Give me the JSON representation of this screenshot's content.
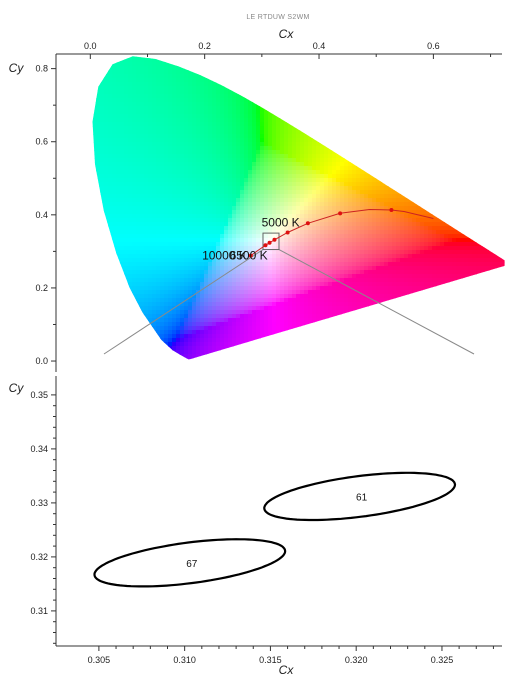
{
  "chart_data": [
    {
      "type": "scatter",
      "title": "LE RTDUW S2WM",
      "xlabel": "Cx",
      "ylabel": "Cy",
      "xlim": [
        -0.06,
        0.72
      ],
      "ylim": [
        -0.03,
        0.84
      ],
      "x_ticks": [
        "0.0",
        "0.2",
        "0.4",
        "0.6"
      ],
      "y_ticks": [
        "0.0",
        "0.2",
        "0.4",
        "0.6",
        "0.8"
      ],
      "grid": false,
      "spectral_locus": [
        [
          0.1741,
          0.005
        ],
        [
          0.1733,
          0.0048
        ],
        [
          0.1726,
          0.0048
        ],
        [
          0.1714,
          0.0051
        ],
        [
          0.1689,
          0.0069
        ],
        [
          0.1644,
          0.0109
        ],
        [
          0.1566,
          0.0177
        ],
        [
          0.144,
          0.0297
        ],
        [
          0.1241,
          0.0578
        ],
        [
          0.0913,
          0.1327
        ],
        [
          0.0687,
          0.2007
        ],
        [
          0.0454,
          0.295
        ],
        [
          0.0235,
          0.4127
        ],
        [
          0.0082,
          0.5384
        ],
        [
          0.0039,
          0.6548
        ],
        [
          0.0139,
          0.7502
        ],
        [
          0.0389,
          0.812
        ],
        [
          0.0743,
          0.8338
        ],
        [
          0.1142,
          0.8262
        ],
        [
          0.1547,
          0.8059
        ],
        [
          0.1929,
          0.7816
        ],
        [
          0.2296,
          0.7543
        ],
        [
          0.2658,
          0.7243
        ],
        [
          0.3016,
          0.6923
        ],
        [
          0.3373,
          0.6589
        ],
        [
          0.3731,
          0.6245
        ],
        [
          0.4087,
          0.5896
        ],
        [
          0.4441,
          0.5547
        ],
        [
          0.4788,
          0.5202
        ],
        [
          0.5125,
          0.4866
        ],
        [
          0.5448,
          0.4544
        ],
        [
          0.5752,
          0.4242
        ],
        [
          0.6029,
          0.3965
        ],
        [
          0.627,
          0.3725
        ],
        [
          0.6482,
          0.3514
        ],
        [
          0.6658,
          0.334
        ],
        [
          0.6801,
          0.3197
        ],
        [
          0.6915,
          0.3083
        ],
        [
          0.7006,
          0.2993
        ],
        [
          0.7079,
          0.292
        ],
        [
          0.7347,
          0.2653
        ]
      ],
      "planckian_locus": [
        [
          0.6,
          0.39
        ],
        [
          0.5486,
          0.4092
        ],
        [
          0.5266,
          0.4133
        ],
        [
          0.4882,
          0.4147
        ],
        [
          0.4369,
          0.4041
        ],
        [
          0.3805,
          0.3768
        ],
        [
          0.3451,
          0.3516
        ],
        [
          0.3221,
          0.3318
        ],
        [
          0.3135,
          0.3237
        ],
        [
          0.3064,
          0.3166
        ],
        [
          0.2952,
          0.3048
        ],
        [
          0.2807,
          0.2884
        ]
      ],
      "cct_markers": [
        {
          "x": 0.5266,
          "y": 0.4133
        },
        {
          "x": 0.4369,
          "y": 0.4041
        },
        {
          "x": 0.3805,
          "y": 0.3768
        },
        {
          "x": 0.3451,
          "y": 0.3516
        },
        {
          "x": 0.3221,
          "y": 0.3318
        },
        {
          "x": 0.3135,
          "y": 0.3237
        },
        {
          "x": 0.3064,
          "y": 0.3166
        },
        {
          "x": 0.2807,
          "y": 0.2884
        }
      ],
      "cct_labels": [
        {
          "text": "5000 K",
          "x": 0.3451,
          "y": 0.3516
        },
        {
          "text": "6500 K",
          "x": 0.3135,
          "y": 0.3237
        },
        {
          "text": "10000 K",
          "x": 0.2807,
          "y": 0.2884
        }
      ],
      "zoom_box": {
        "x": [
          0.302,
          0.33
        ],
        "y": [
          0.305,
          0.35
        ]
      },
      "marker_color": "#e01010",
      "locus_line_color": "#cc2222",
      "zoom_line_color": "#8a8a8a"
    },
    {
      "type": "scatter",
      "title": "",
      "xlabel": "Cx",
      "ylabel": "Cy",
      "xlim": [
        0.3025,
        0.3285
      ],
      "ylim": [
        0.3035,
        0.3535
      ],
      "x_ticks": [
        "0.305",
        "0.310",
        "0.315",
        "0.320",
        "0.325"
      ],
      "y_ticks": [
        "0.31",
        "0.32",
        "0.33",
        "0.34",
        "0.35"
      ],
      "grid": false,
      "ellipses": [
        {
          "label": "61",
          "cx": 0.3202,
          "cy": 0.3312,
          "a": 0.0062,
          "b": 0.0034,
          "angle_deg": 32
        },
        {
          "label": "67",
          "cx": 0.3103,
          "cy": 0.3189,
          "a": 0.0062,
          "b": 0.0034,
          "angle_deg": 32
        }
      ]
    }
  ]
}
